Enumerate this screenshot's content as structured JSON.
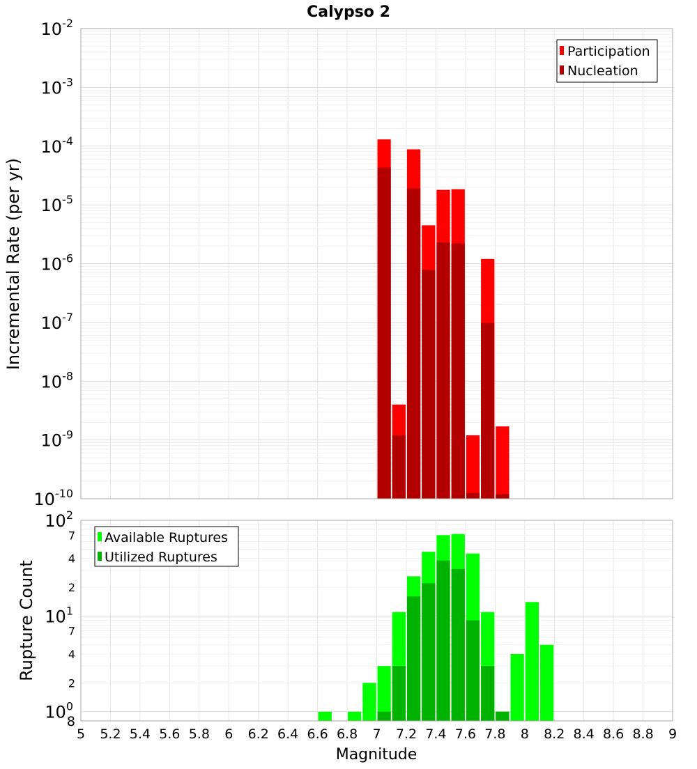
{
  "chart_data": [
    {
      "type": "bar",
      "title": "Calypso 2",
      "xlabel": "",
      "ylabel": "Incremental Rate (per yr)",
      "xlim": [
        5,
        9
      ],
      "ylim": [
        1e-10,
        0.01
      ],
      "yscale": "log",
      "y_tick_exponents": [
        "-10",
        "-9",
        "-8",
        "-7",
        "-6",
        "-5",
        "-4",
        "-3",
        "-2"
      ],
      "grid": true,
      "legend_placement": "top-right",
      "colors": {
        "Participation": "#ff0000",
        "Nucleation": "#b20000"
      },
      "bin_width": 0.1,
      "series": [
        {
          "name": "Participation",
          "x": [
            7.05,
            7.15,
            7.25,
            7.35,
            7.45,
            7.55,
            7.65,
            7.75,
            7.85
          ],
          "values": [
            0.00013,
            4e-09,
            8.8e-05,
            4.5e-06,
            1.8e-05,
            1.85e-05,
            1.2e-09,
            1.2e-06,
            1.7e-09
          ]
        },
        {
          "name": "Nucleation",
          "x": [
            7.05,
            7.15,
            7.25,
            7.35,
            7.45,
            7.55,
            7.65,
            7.75,
            7.85
          ],
          "values": [
            4.3e-05,
            1.2e-09,
            1.9e-05,
            7.8e-07,
            2.3e-06,
            2.2e-06,
            1.25e-10,
            9.8e-08,
            1.2e-10
          ]
        }
      ]
    },
    {
      "type": "bar",
      "title": "",
      "xlabel": "Magnitude",
      "ylabel": "Rupture Count",
      "xlim": [
        5,
        9
      ],
      "x_ticks": [
        "5",
        "5.2",
        "5.4",
        "5.6",
        "5.8",
        "6",
        "6.2",
        "6.4",
        "6.6",
        "6.8",
        "7",
        "7.2",
        "7.4",
        "7.6",
        "7.8",
        "8",
        "8.2",
        "8.4",
        "8.6",
        "8.8",
        "9"
      ],
      "ylim": [
        0.8,
        100
      ],
      "yscale": "log",
      "y_major_ticks": [
        {
          "base": "10",
          "exp": "0",
          "v": 1
        },
        {
          "base": "10",
          "exp": "1",
          "v": 10
        },
        {
          "base": "10",
          "exp": "2",
          "v": 100
        }
      ],
      "y_minor_ticks": [
        {
          "label": "2",
          "v": 2
        },
        {
          "label": "4",
          "v": 4
        },
        {
          "label": "7",
          "v": 7
        },
        {
          "label": "2",
          "v": 20
        },
        {
          "label": "4",
          "v": 40
        },
        {
          "label": "7",
          "v": 70
        }
      ],
      "y_bottom_label": "8",
      "grid": true,
      "legend_placement": "top-left",
      "colors": {
        "Available Ruptures": "#00ff00",
        "Utilized Ruptures": "#00b200"
      },
      "bin_width": 0.1,
      "series": [
        {
          "name": "Available Ruptures",
          "x": [
            6.65,
            6.85,
            6.95,
            7.05,
            7.15,
            7.25,
            7.35,
            7.45,
            7.55,
            7.65,
            7.75,
            7.85,
            7.95,
            8.05,
            8.15
          ],
          "values": [
            1,
            1,
            2,
            3,
            11,
            26,
            47,
            70,
            72,
            45,
            11,
            1,
            4,
            14,
            5
          ]
        },
        {
          "name": "Utilized Ruptures",
          "x": [
            6.65,
            6.85,
            6.95,
            7.05,
            7.15,
            7.25,
            7.35,
            7.45,
            7.55,
            7.65,
            7.75,
            7.85,
            7.95,
            8.05,
            8.15
          ],
          "values": [
            0,
            0,
            0,
            1,
            3,
            16,
            22,
            38,
            31,
            9,
            3,
            1,
            0,
            0,
            0
          ]
        }
      ]
    }
  ]
}
